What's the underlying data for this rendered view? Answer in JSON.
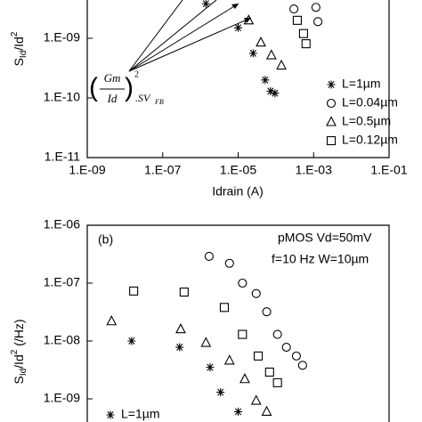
{
  "chart_data": [
    {
      "type": "scatter",
      "log_x": true,
      "log_y": true,
      "xlabel": "Idrain (A)",
      "ylabel": {
        "main": "S",
        "sub": "Id",
        "mid": "/Id",
        "sup": "2"
      },
      "xlim": [
        1e-09,
        0.1
      ],
      "xticks": [
        {
          "value": 1e-09,
          "label": "1.E-09"
        },
        {
          "value": 1e-07,
          "label": "1.E-07"
        },
        {
          "value": 1e-05,
          "label": "1.E-05"
        },
        {
          "value": 0.001,
          "label": "1.E-03"
        },
        {
          "value": 0.1,
          "label": "1.E-01"
        }
      ],
      "ylim": [
        1e-11,
        1e-08
      ],
      "yticks": [
        {
          "value": 1e-09,
          "label": "1.E-09"
        },
        {
          "value": 1e-10,
          "label": "1.E-10"
        },
        {
          "value": 1e-11,
          "label": "1.E-11"
        }
      ],
      "formula": {
        "num": "Gm",
        "den": "Id",
        "sup": "2",
        "rest": ".SV",
        "sub": "FB"
      },
      "series": [
        {
          "name": "L=1µm",
          "marker": "asterisk",
          "color": "#000000",
          "x": [
            1.4e-06,
            1e-05,
            2.5e-05,
            5.2e-05,
            7.2e-05,
            9.5e-05
          ],
          "values": [
            3.8e-09,
            1.5e-09,
            5.6e-10,
            2e-10,
            1.3e-10,
            1.2e-10
          ]
        },
        {
          "name": "L=0.04µm",
          "marker": "circle",
          "color": "#000000",
          "x": [
            0.0003,
            0.00115,
            0.0013
          ],
          "values": [
            3.1e-09,
            3.3e-09,
            1.9e-09
          ]
        },
        {
          "name": "L=0.5µm",
          "marker": "triangle",
          "color": "#000000",
          "x": [
            1.9e-05,
            4e-05,
            7.6e-05,
            0.00014
          ],
          "values": [
            2e-09,
            8.5e-10,
            5.2e-10,
            3.5e-10
          ]
        },
        {
          "name": "L=0.12µm",
          "marker": "square",
          "color": "#000000",
          "x": [
            0.00037,
            0.00054,
            0.00063
          ],
          "values": [
            2e-09,
            1.2e-09,
            8.1e-10
          ]
        }
      ]
    },
    {
      "type": "scatter",
      "log_x": true,
      "log_y": true,
      "ylabel": {
        "main": "S",
        "sub": "Id",
        "mid": "/Id",
        "sup": "2",
        "unit": " (/Hz)"
      },
      "panel_label": "(b)",
      "annotations": [
        "pMOS Vd=50mV",
        "f=10 Hz W=10µm"
      ],
      "xlim": [
        1e-09,
        0.1
      ],
      "ylim": [
        1e-10,
        1e-06
      ],
      "yticks": [
        {
          "value": 1e-06,
          "label": "1.E-06"
        },
        {
          "value": 1e-07,
          "label": "1.E-07"
        },
        {
          "value": 1e-08,
          "label": "1.E-08"
        },
        {
          "value": 1e-09,
          "label": "1.E-09"
        }
      ],
      "series": [
        {
          "name": "L=1µm",
          "marker": "asterisk",
          "color": "#000000",
          "x": [
            1.5e-08,
            2.8e-07,
            1.8e-06,
            3.4e-06,
            1e-05
          ],
          "values": [
            1e-08,
            7.8e-09,
            3.5e-09,
            1.3e-09,
            6e-10
          ]
        },
        {
          "marker": "circle",
          "color": "#000000",
          "x": [
            1.7e-06,
            5.9e-06,
            1.3e-05,
            3e-05,
            5.7e-05,
            0.00011,
            0.00019,
            0.00035,
            0.00051
          ],
          "values": [
            2.9e-07,
            2.2e-07,
            1e-07,
            6.6e-08,
            3.2e-08,
            1.3e-08,
            7.8e-09,
            5.5e-09,
            3.8e-09
          ]
        },
        {
          "marker": "triangle",
          "color": "#000000",
          "x": [
            4.4e-09,
            3e-07,
            1.4e-06,
            5.9e-06,
            1.5e-05,
            3e-05,
            5.7e-05
          ],
          "values": [
            2.2e-08,
            1.6e-08,
            9.3e-09,
            4.6e-09,
            2.2e-09,
            9.3e-10,
            6e-10
          ]
        },
        {
          "marker": "square",
          "color": "#000000",
          "x": [
            1.7e-08,
            3.7e-07,
            4.3e-06,
            1.3e-05,
            3.4e-05,
            6.8e-05,
            0.00011
          ],
          "values": [
            7.3e-08,
            7e-08,
            3.8e-08,
            1.3e-08,
            5.5e-09,
            2.9e-09,
            1.9e-09
          ]
        }
      ]
    }
  ]
}
